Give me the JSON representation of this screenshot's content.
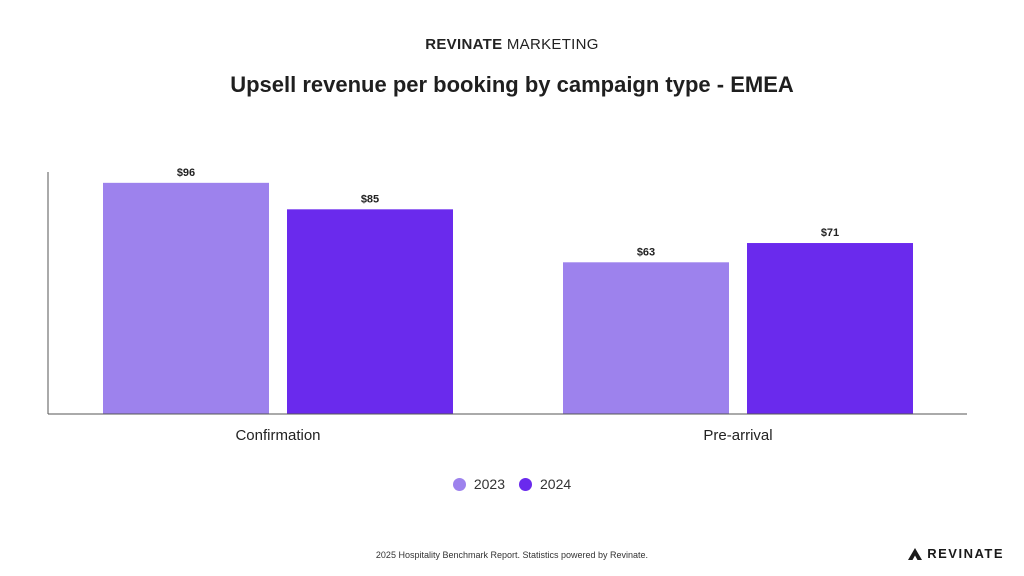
{
  "header": {
    "brand_strong": "REVINATE",
    "brand_rest": " MARKETING"
  },
  "footer": {
    "note": "2025 Hospitality Benchmark Report. Statistics powered by Revinate.",
    "logo_text": "REVINATE"
  },
  "colors": {
    "series_2023": "#9d82ed",
    "series_2024": "#6a2aed",
    "axis": "#555555"
  },
  "chart_data": {
    "type": "bar",
    "title": "Upsell revenue per booking by campaign type - EMEA",
    "categories": [
      "Confirmation",
      "Pre-arrival"
    ],
    "series": [
      {
        "name": "2023",
        "values": [
          96,
          63
        ],
        "labels": [
          "$96",
          "$63"
        ],
        "color": "#9d82ed"
      },
      {
        "name": "2024",
        "values": [
          85,
          71
        ],
        "labels": [
          "$85",
          "$71"
        ],
        "color": "#6a2aed"
      }
    ],
    "ylim": [
      0,
      125
    ],
    "grid": false,
    "legend": "bottom-center",
    "xlabel": "",
    "ylabel": ""
  }
}
